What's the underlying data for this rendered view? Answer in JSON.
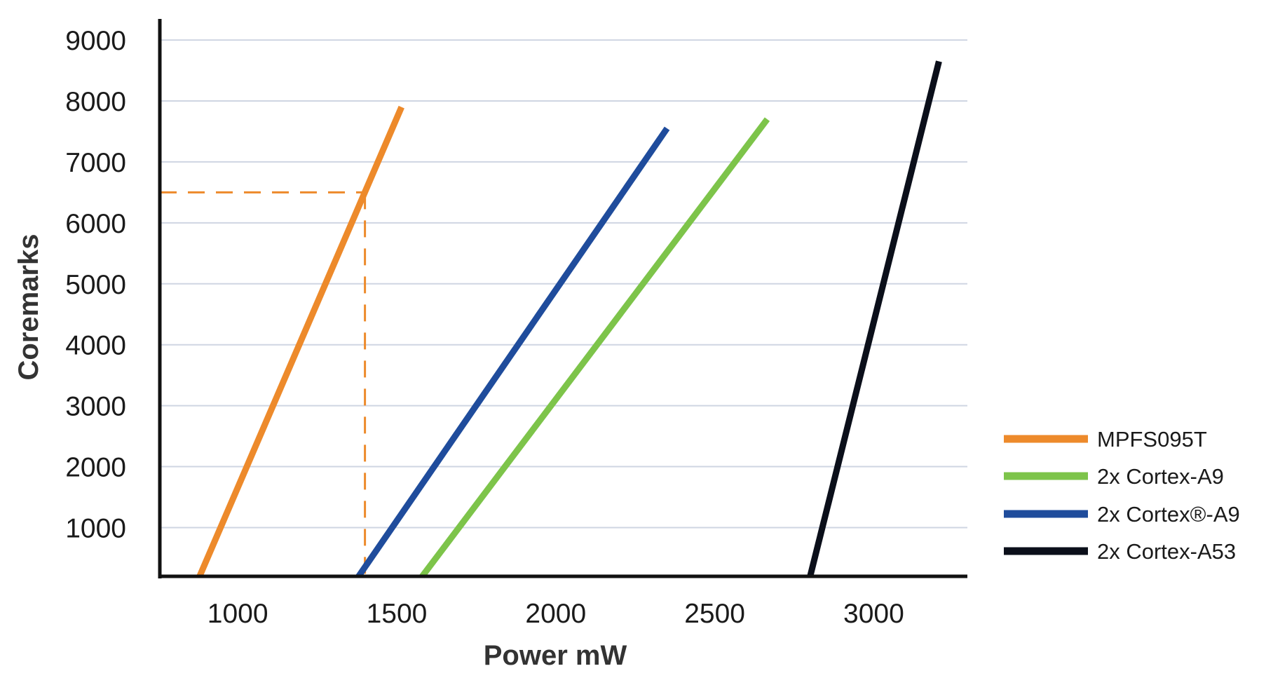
{
  "chart_data": {
    "type": "line",
    "title": "",
    "xlabel": "Power mW",
    "ylabel": "Coremarks",
    "xlim": [
      755,
      3290
    ],
    "ylim": [
      200,
      9300
    ],
    "x_ticks": [
      1000,
      1500,
      2000,
      2500,
      3000
    ],
    "y_ticks": [
      1000,
      2000,
      3000,
      4000,
      5000,
      6000,
      7000,
      8000,
      9000
    ],
    "grid": "horizontal",
    "legend_position": "right",
    "series": [
      {
        "name": "MPFS095T",
        "color": "#ed8a2b",
        "points": [
          [
            880,
            200
          ],
          [
            1515,
            7900
          ]
        ]
      },
      {
        "name": "2x Cortex-A9",
        "color": "#7dc44a",
        "points": [
          [
            1580,
            200
          ],
          [
            2665,
            7700
          ]
        ]
      },
      {
        "name": "2x Cortex®-A9",
        "color": "#1f4c9c",
        "points": [
          [
            1380,
            200
          ],
          [
            2350,
            7550
          ]
        ]
      },
      {
        "name": "2x Cortex-A53",
        "color": "#0b0f1a",
        "points": [
          [
            2800,
            200
          ],
          [
            3205,
            8650
          ]
        ]
      }
    ],
    "annotation": {
      "type": "dashed-reference",
      "series": "MPFS095T",
      "x": 1400,
      "y": 6500,
      "color": "#ed8a2b"
    }
  }
}
